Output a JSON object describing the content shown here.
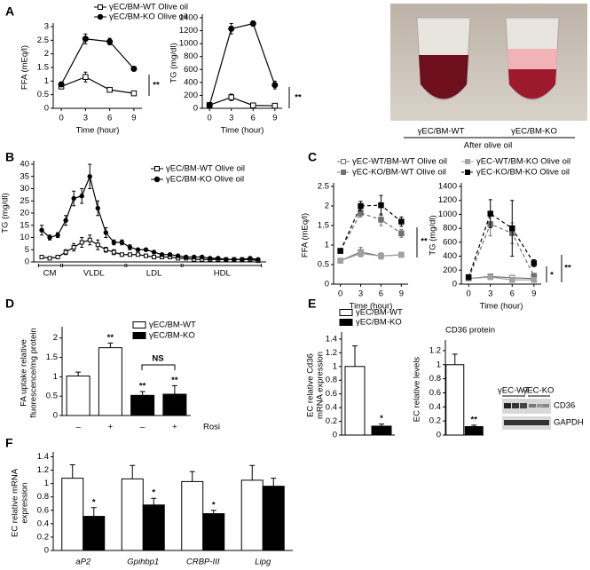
{
  "chart_data": [
    {
      "panel": "A",
      "type": "line",
      "y_label": [
        "FFA (mEq/l)"
      ],
      "x_label": "Time (hour)",
      "x": [
        0,
        3,
        6,
        9
      ],
      "xlim": [
        -1,
        10
      ],
      "xticks": [
        0,
        3,
        6,
        9
      ],
      "ylim": [
        0,
        3
      ],
      "yticks": [
        0,
        0.5,
        1,
        1.5,
        2,
        2.5,
        3
      ],
      "series": [
        {
          "name": "γEC/BM-WT Olive oil",
          "color": "#000000",
          "marker": "square-open",
          "line_style": "solid",
          "values": [
            0.8,
            1.15,
            0.68,
            0.55
          ],
          "errors": [
            0.07,
            0.18,
            0.06,
            0.03
          ]
        },
        {
          "name": "γEC/BM-KO Olive oil",
          "color": "#000000",
          "marker": "circle-filled",
          "line_style": "solid",
          "values": [
            0.88,
            2.55,
            2.45,
            1.45
          ],
          "errors": [
            0.06,
            0.18,
            0.12,
            0.06
          ]
        }
      ],
      "annotations": [
        "**"
      ]
    },
    {
      "type": "line",
      "y_label": [
        "TG (mg/dl)"
      ],
      "x_label": "Time (hour)",
      "x": [
        0,
        3,
        6,
        9
      ],
      "xlim": [
        -1,
        10
      ],
      "xticks": [
        0,
        3,
        6,
        9
      ],
      "ylim": [
        0,
        1400
      ],
      "yticks": [
        0,
        200,
        400,
        600,
        800,
        1000,
        1200,
        1400
      ],
      "series": [
        {
          "color": "#000000",
          "marker": "square-open",
          "line_style": "solid",
          "values": [
            50,
            170,
            45,
            40
          ],
          "errors": [
            10,
            50,
            10,
            10
          ]
        },
        {
          "color": "#000000",
          "marker": "circle-filled",
          "line_style": "solid",
          "values": [
            50,
            1230,
            1310,
            360
          ],
          "errors": [
            15,
            80,
            40,
            60
          ]
        }
      ],
      "annotations": [
        "**"
      ]
    },
    {
      "panel": "B",
      "type": "line",
      "y_label": [
        "TG (mg/dl)"
      ],
      "x": [
        1,
        2,
        3,
        4,
        5,
        6,
        7,
        8,
        9,
        10,
        11,
        12,
        13,
        14,
        15,
        16,
        17,
        18,
        19,
        20,
        21,
        22,
        23,
        24,
        25,
        26,
        27,
        28
      ],
      "xlim": [
        0,
        29
      ],
      "x_groups": [
        "CM",
        "VLDL",
        "LDL",
        "HDL"
      ],
      "ylim": [
        0,
        40
      ],
      "yticks": [
        0,
        5,
        10,
        15,
        20,
        25,
        30,
        35,
        40
      ],
      "series": [
        {
          "name": "γEC/BM-WT Olive oil",
          "color": "#000000",
          "marker": "square-open",
          "line_style": "solid",
          "values": [
            2,
            1.5,
            2,
            4,
            6,
            8,
            9,
            7,
            5,
            4,
            3,
            3,
            3,
            2.5,
            2,
            2,
            2,
            1.5,
            1.5,
            1,
            1,
            1,
            1,
            1,
            1,
            1,
            1,
            0.5
          ],
          "errors": [
            0.5,
            0.5,
            0.5,
            1,
            1.5,
            2,
            2,
            2,
            1,
            1,
            0.5,
            0.5,
            0.5,
            0.5,
            0.5,
            0.5,
            0.5,
            0.5,
            0.5,
            0.5,
            0.5,
            0.5,
            0.5,
            0.5,
            0.5,
            0.5,
            0.5,
            0.5
          ]
        },
        {
          "name": "γEC/BM-KO Olive oil",
          "color": "#000000",
          "marker": "circle-filled",
          "line_style": "solid",
          "values": [
            13,
            10,
            11,
            17,
            26,
            27,
            35,
            22,
            12,
            8,
            8,
            6,
            5,
            5,
            4,
            3,
            3,
            2.5,
            2,
            2,
            2,
            1.5,
            1.5,
            1,
            1,
            1,
            1.5,
            1
          ],
          "errors": [
            2,
            1,
            1,
            2,
            3,
            3,
            5,
            3,
            2,
            1,
            1,
            1,
            0.5,
            0.5,
            0.5,
            0.5,
            0.5,
            0.5,
            0.5,
            0.5,
            0.5,
            0.5,
            0.5,
            0.5,
            0.5,
            0.5,
            0.5,
            0.5
          ]
        }
      ]
    },
    {
      "panel": "C",
      "type": "line",
      "y_label": [
        "FFA (mEq/l)"
      ],
      "x_label": "Time (hour)",
      "x": [
        0,
        3,
        6,
        9
      ],
      "xlim": [
        -1,
        10
      ],
      "xticks": [
        0,
        3,
        6,
        9
      ],
      "ylim": [
        0,
        2.5
      ],
      "yticks": [
        0,
        0.5,
        1,
        1.5,
        2,
        2.5
      ],
      "series": [
        {
          "name": "γEC-WT/BM-WT Olive oil",
          "color": "#707070",
          "marker": "square-open",
          "line_style": "solid",
          "values": [
            0.6,
            0.82,
            0.72,
            0.75
          ],
          "errors": [
            0.05,
            0.12,
            0.08,
            0.05
          ]
        },
        {
          "name": "γEC-KO/BM-WT Olive oil",
          "color": "#707070",
          "marker": "square-filled",
          "line_style": "dashed",
          "values": [
            0.85,
            1.82,
            1.65,
            1.3
          ],
          "errors": [
            0.04,
            0.1,
            0.15,
            0.1
          ]
        },
        {
          "name": "γEC-WT/BM-KO Olive oil",
          "color": "#a0a0a0",
          "marker": "square-filled",
          "line_style": "solid",
          "values": [
            0.6,
            0.78,
            0.72,
            0.75
          ],
          "errors": [
            0.05,
            0.08,
            0.08,
            0.05
          ]
        },
        {
          "name": "γEC-KO/BM-KO Olive oil",
          "color": "#000000",
          "marker": "square-filled",
          "line_style": "dashed",
          "values": [
            0.85,
            2.0,
            2.02,
            1.6
          ],
          "errors": [
            0.04,
            0.12,
            0.25,
            0.12
          ]
        }
      ],
      "annotations": [
        "**"
      ]
    },
    {
      "type": "line",
      "y_label": [
        "TG (mg/dl)"
      ],
      "x_label": "Time (hour)",
      "x": [
        0,
        3,
        6,
        9
      ],
      "xlim": [
        -1,
        10
      ],
      "xticks": [
        0,
        3,
        6,
        9
      ],
      "ylim": [
        0,
        1400
      ],
      "yticks": [
        0,
        200,
        400,
        600,
        800,
        1000,
        1200,
        1400
      ],
      "series": [
        {
          "color": "#707070",
          "marker": "square-open",
          "line_style": "solid",
          "values": [
            80,
            110,
            90,
            80
          ],
          "errors": [
            10,
            20,
            20,
            10
          ]
        },
        {
          "color": "#707070",
          "marker": "square-filled",
          "line_style": "dashed",
          "values": [
            80,
            860,
            730,
            120
          ],
          "errors": [
            10,
            170,
            150,
            30
          ]
        },
        {
          "color": "#a0a0a0",
          "marker": "square-filled",
          "line_style": "solid",
          "values": [
            80,
            100,
            60,
            60
          ],
          "errors": [
            10,
            10,
            10,
            10
          ]
        },
        {
          "color": "#000000",
          "marker": "square-filled",
          "line_style": "dashed",
          "values": [
            100,
            1010,
            800,
            300
          ],
          "errors": [
            10,
            200,
            400,
            50
          ]
        }
      ],
      "annotations": [
        "*",
        "**"
      ]
    },
    {
      "panel": "D",
      "type": "bar",
      "y_label": [
        "FA uptake relative",
        "fluorescence/mg protein"
      ],
      "categories": [
        "–",
        "+",
        "–",
        "+"
      ],
      "x_label": "Rosi",
      "ylim": [
        0,
        2.2
      ],
      "yticks": [
        0,
        0.5,
        1,
        1.5,
        2
      ],
      "series": [
        {
          "name": "γEC/BM-WT",
          "color": "#ffffff",
          "values": [
            1.02,
            1.75,
            null,
            null
          ],
          "errors": [
            0.1,
            0.12,
            null,
            null
          ],
          "significance": [
            null,
            "**",
            null,
            null
          ]
        },
        {
          "name": "γEC/BM-KO",
          "color": "#000000",
          "values": [
            null,
            null,
            0.52,
            0.55
          ],
          "errors": [
            null,
            null,
            0.1,
            0.22
          ],
          "significance": [
            null,
            null,
            "**",
            "**"
          ]
        }
      ],
      "annotations": [
        "NS"
      ]
    },
    {
      "panel": "E",
      "type": "bar",
      "y_label": [
        "EC relative Cd36",
        "mRNA expression"
      ],
      "categories": [
        null,
        null
      ],
      "ylim": [
        0,
        1.45
      ],
      "yticks": [
        0,
        0.2,
        0.4,
        0.6,
        0.8,
        1,
        1.2,
        1.4
      ],
      "series": [
        {
          "name": "γEC/BM-WT",
          "color": "#ffffff",
          "values": [
            1,
            null
          ],
          "errors": [
            0.3,
            null
          ]
        },
        {
          "name": "γEC/BM-KO",
          "color": "#000000",
          "values": [
            null,
            0.13
          ],
          "errors": [
            null,
            0.03
          ],
          "significance": [
            null,
            "*"
          ]
        }
      ]
    },
    {
      "type": "bar",
      "title": "CD36 protein",
      "y_label": [
        "EC relative levels"
      ],
      "categories": [
        null,
        null
      ],
      "ylim": [
        0,
        1.3
      ],
      "yticks": [
        0,
        0.2,
        0.4,
        0.6,
        0.8,
        1,
        1.2
      ],
      "series": [
        {
          "color": "#ffffff",
          "values": [
            1,
            null
          ],
          "errors": [
            0.15,
            null
          ]
        },
        {
          "color": "#000000",
          "values": [
            null,
            0.12
          ],
          "errors": [
            null,
            0.02
          ],
          "significance": [
            null,
            "**"
          ]
        }
      ]
    },
    {
      "panel": "F",
      "type": "bar",
      "y_label": [
        "EC relative mRNA",
        "expression"
      ],
      "categories": [
        "aP2",
        "Gpihbp1",
        "CRBP-III",
        "Lipg"
      ],
      "category_style": "italic",
      "ylim": [
        0,
        1.42
      ],
      "yticks": [
        0,
        0.2,
        0.4,
        0.6,
        0.8,
        1,
        1.2,
        1.4
      ],
      "series": [
        {
          "color": "#ffffff",
          "values": [
            1.08,
            1.07,
            1.03,
            1.05
          ],
          "errors": [
            0.2,
            0.2,
            0.15,
            0.22
          ]
        },
        {
          "color": "#000000",
          "values": [
            0.51,
            0.68,
            0.55,
            0.96
          ],
          "errors": [
            0.13,
            0.1,
            0.05,
            0.12
          ],
          "significance": [
            "*",
            "*",
            "*",
            null
          ]
        }
      ]
    }
  ],
  "photo": {
    "labels": [
      "γEC/BM-WT",
      "γEC/BM-KO"
    ],
    "caption": "After olive oil"
  },
  "blot": {
    "groups": [
      "γEC-WT",
      "γEC-KO"
    ],
    "bands": [
      "CD36",
      "GAPDH"
    ]
  }
}
